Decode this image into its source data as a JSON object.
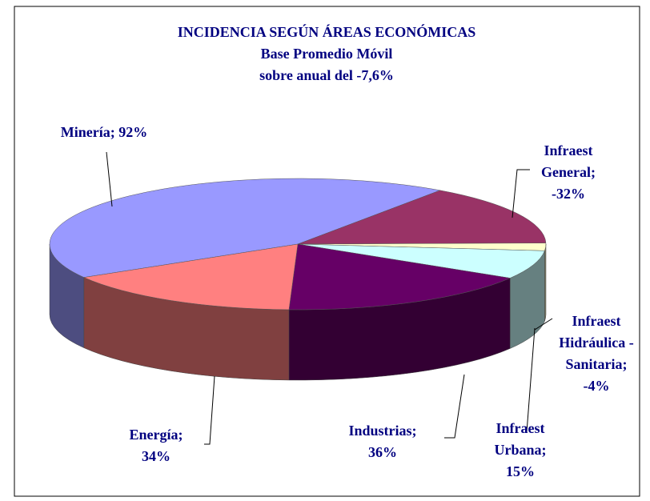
{
  "chart_data": {
    "type": "pie3d",
    "title": [
      "INCIDENCIA SEGÚN ÁREAS ECONÓMICAS",
      "Base Promedio Móvil",
      "sobre  anual del -7,6%"
    ],
    "labels": [
      [
        "Minería; 92%"
      ],
      [
        "Infraest",
        "General;",
        "-32%"
      ],
      [
        "Infraest",
        "Hidráulica -",
        "Sanitaria;",
        "-4%"
      ],
      [
        "Infraest",
        "Urbana;",
        "15%"
      ],
      [
        "Industrias;",
        "36%"
      ],
      [
        "Energía;",
        "34%"
      ]
    ],
    "values": [
      92,
      -32,
      -4,
      15,
      36,
      34
    ],
    "colors": [
      "#9999ff",
      "#993366",
      "#ffffcc",
      "#ccffff",
      "#660066",
      "#ff8080"
    ]
  }
}
